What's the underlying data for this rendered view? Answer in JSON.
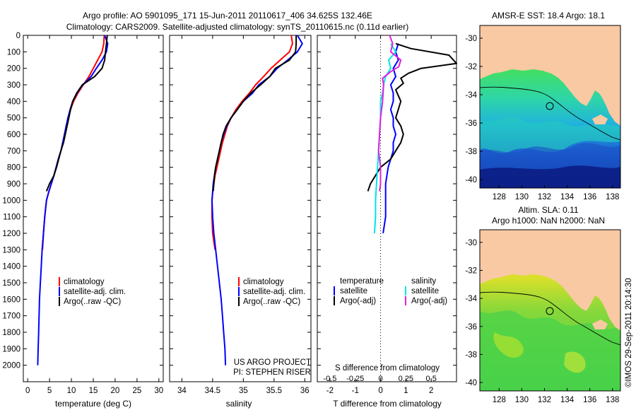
{
  "header": {
    "line1": "Argo profile: AO 5901095_171 15-Jun-2011 20110617_406 34.625S 132.46E",
    "line2": "Climatology: CARS2009. Satellite-adjusted climatology: synTS_20110615.nc (0.11d earlier)"
  },
  "colors": {
    "climatology": "#ff0000",
    "satellite": "#0000ff",
    "argo": "#000000",
    "salinity_sat": "#00e5e5",
    "salinity_argo": "#e020e0",
    "land": "#f9c9a3"
  },
  "credit": "©IMOS 29-Sep-2011 20:14:30",
  "chart_data": [
    {
      "type": "line",
      "xlabel": "temperature (deg C)",
      "ylabel": "",
      "xlim": [
        -1,
        31
      ],
      "ylim": [
        2100,
        0
      ],
      "xticks": [
        0,
        5,
        10,
        15,
        20,
        25,
        30
      ],
      "yticks": [
        0,
        100,
        200,
        300,
        400,
        500,
        600,
        700,
        800,
        900,
        1000,
        1100,
        1200,
        1300,
        1400,
        1500,
        1600,
        1700,
        1800,
        1900,
        2000
      ],
      "legend": [
        "climatology",
        "satellite-adj. clim.",
        "Argo(..raw -QC)"
      ],
      "series": [
        {
          "name": "climatology",
          "color": "#ff0000",
          "points": [
            [
              17.5,
              0
            ],
            [
              17.4,
              50
            ],
            [
              17.0,
              100
            ],
            [
              16.0,
              150
            ],
            [
              15.0,
              200
            ],
            [
              14.0,
              250
            ],
            [
              12.7,
              300
            ],
            [
              11.5,
              350
            ],
            [
              10.5,
              400
            ],
            [
              9.8,
              450
            ],
            [
              9.3,
              500
            ],
            [
              8.9,
              550
            ],
            [
              8.5,
              600
            ],
            [
              8.1,
              650
            ],
            [
              7.6,
              700
            ],
            [
              7.0,
              750
            ],
            [
              6.5,
              800
            ],
            [
              6.0,
              850
            ],
            [
              5.4,
              900
            ],
            [
              4.8,
              950
            ],
            [
              4.3,
              1000
            ],
            [
              3.9,
              1100
            ],
            [
              3.6,
              1200
            ],
            [
              3.4,
              1300
            ]
          ]
        },
        {
          "name": "satellite-adj. clim.",
          "color": "#0000ff",
          "points": [
            [
              17.6,
              0
            ],
            [
              18.3,
              50
            ],
            [
              18.0,
              100
            ],
            [
              17.0,
              150
            ],
            [
              15.7,
              200
            ],
            [
              14.5,
              250
            ],
            [
              12.6,
              300
            ],
            [
              11.3,
              350
            ],
            [
              10.3,
              400
            ],
            [
              9.7,
              450
            ],
            [
              9.2,
              500
            ],
            [
              8.8,
              550
            ],
            [
              8.4,
              600
            ],
            [
              8.0,
              650
            ],
            [
              7.6,
              700
            ],
            [
              7.0,
              750
            ],
            [
              6.5,
              800
            ],
            [
              6.0,
              850
            ],
            [
              5.4,
              900
            ],
            [
              4.8,
              950
            ],
            [
              4.3,
              1000
            ],
            [
              3.9,
              1100
            ],
            [
              3.6,
              1200
            ],
            [
              3.3,
              1300
            ],
            [
              3.1,
              1400
            ],
            [
              2.9,
              1500
            ],
            [
              2.7,
              1600
            ],
            [
              2.6,
              1700
            ],
            [
              2.5,
              1800
            ],
            [
              2.4,
              1900
            ],
            [
              2.3,
              2000
            ]
          ]
        },
        {
          "name": "Argo(..raw -QC)",
          "color": "#000000",
          "points": [
            [
              18.2,
              0
            ],
            [
              18.0,
              50
            ],
            [
              17.8,
              100
            ],
            [
              17.6,
              150
            ],
            [
              17.0,
              200
            ],
            [
              15.3,
              250
            ],
            [
              12.5,
              300
            ],
            [
              11.2,
              350
            ],
            [
              10.3,
              400
            ],
            [
              9.8,
              450
            ],
            [
              9.4,
              500
            ],
            [
              9.0,
              550
            ],
            [
              8.6,
              600
            ],
            [
              8.2,
              650
            ],
            [
              7.6,
              700
            ],
            [
              7.1,
              750
            ],
            [
              6.6,
              800
            ],
            [
              6.0,
              850
            ],
            [
              5.0,
              900
            ],
            [
              4.3,
              945
            ]
          ]
        }
      ]
    },
    {
      "type": "line",
      "xlabel": "salinity",
      "ylabel": "",
      "xlim": [
        33.8,
        36.1
      ],
      "ylim": [
        2100,
        0
      ],
      "xticks": [
        34,
        34.5,
        35,
        35.5,
        36
      ],
      "legend": [
        "climatology",
        "satellite-adj. clim.",
        "Argo(..raw -QC)"
      ],
      "annotation": [
        "US ARGO PROJECT",
        "PI: STEPHEN RISER"
      ],
      "series": [
        {
          "name": "climatology",
          "color": "#ff0000",
          "points": [
            [
              35.78,
              0
            ],
            [
              35.8,
              50
            ],
            [
              35.75,
              100
            ],
            [
              35.6,
              150
            ],
            [
              35.45,
              200
            ],
            [
              35.33,
              250
            ],
            [
              35.2,
              300
            ],
            [
              35.1,
              350
            ],
            [
              34.98,
              400
            ],
            [
              34.88,
              450
            ],
            [
              34.8,
              500
            ],
            [
              34.74,
              550
            ],
            [
              34.7,
              600
            ],
            [
              34.66,
              650
            ],
            [
              34.63,
              700
            ],
            [
              34.6,
              750
            ],
            [
              34.57,
              800
            ],
            [
              34.54,
              850
            ],
            [
              34.52,
              900
            ],
            [
              34.5,
              950
            ],
            [
              34.49,
              1000
            ],
            [
              34.49,
              1100
            ],
            [
              34.5,
              1200
            ],
            [
              34.54,
              1300
            ]
          ]
        },
        {
          "name": "satellite-adj. clim.",
          "color": "#0000ff",
          "points": [
            [
              35.88,
              0
            ],
            [
              35.96,
              50
            ],
            [
              35.88,
              100
            ],
            [
              35.72,
              150
            ],
            [
              35.55,
              200
            ],
            [
              35.43,
              250
            ],
            [
              35.25,
              300
            ],
            [
              35.15,
              350
            ],
            [
              35.0,
              400
            ],
            [
              34.9,
              450
            ],
            [
              34.8,
              500
            ],
            [
              34.73,
              550
            ],
            [
              34.68,
              600
            ],
            [
              34.64,
              650
            ],
            [
              34.61,
              700
            ],
            [
              34.58,
              750
            ],
            [
              34.55,
              800
            ],
            [
              34.53,
              850
            ],
            [
              34.51,
              900
            ],
            [
              34.5,
              950
            ],
            [
              34.49,
              1000
            ],
            [
              34.5,
              1100
            ],
            [
              34.52,
              1200
            ],
            [
              34.55,
              1300
            ],
            [
              34.58,
              1400
            ],
            [
              34.61,
              1500
            ],
            [
              34.64,
              1600
            ],
            [
              34.66,
              1700
            ],
            [
              34.68,
              1800
            ],
            [
              34.7,
              1900
            ],
            [
              34.71,
              2000
            ]
          ]
        },
        {
          "name": "Argo(..raw -QC)",
          "color": "#000000",
          "points": [
            [
              35.86,
              0
            ],
            [
              35.86,
              50
            ],
            [
              35.85,
              100
            ],
            [
              35.75,
              150
            ],
            [
              35.52,
              200
            ],
            [
              35.43,
              250
            ],
            [
              35.28,
              300
            ],
            [
              35.12,
              350
            ],
            [
              35.0,
              400
            ],
            [
              34.9,
              450
            ],
            [
              34.8,
              500
            ],
            [
              34.72,
              550
            ],
            [
              34.67,
              600
            ],
            [
              34.64,
              650
            ],
            [
              34.61,
              700
            ],
            [
              34.58,
              750
            ],
            [
              34.55,
              800
            ],
            [
              34.53,
              850
            ],
            [
              34.52,
              900
            ],
            [
              34.51,
              945
            ]
          ]
        }
      ]
    },
    {
      "type": "line",
      "xlabel": "T difference from climatology",
      "x2label": "S difference from climatology",
      "xlim": [
        -2.5,
        3.0
      ],
      "x2lim": [
        -0.625,
        0.75
      ],
      "ylim": [
        2100,
        0
      ],
      "xticks": [
        -2,
        -1,
        0,
        1,
        2
      ],
      "x2ticks": [
        -0.5,
        -0.25,
        0,
        0.25,
        0.5
      ],
      "legend_groups": [
        {
          "title": "temperature",
          "items": [
            "satellite",
            "Argo(-adj)"
          ]
        },
        {
          "title": "salinity",
          "items": [
            "satellite",
            "Argo(-adj)"
          ]
        }
      ],
      "series": [
        {
          "name": "temperature satellite",
          "color": "#0000ff",
          "points": [
            [
              0.7,
              50
            ],
            [
              0.6,
              100
            ],
            [
              0.7,
              150
            ],
            [
              0.5,
              200
            ],
            [
              0.6,
              250
            ],
            [
              0.4,
              300
            ],
            [
              0.5,
              350
            ],
            [
              0.5,
              400
            ],
            [
              0.4,
              450
            ],
            [
              0.5,
              500
            ],
            [
              0.5,
              550
            ],
            [
              0.6,
              600
            ],
            [
              0.5,
              650
            ],
            [
              0.5,
              700
            ],
            [
              0.4,
              750
            ],
            [
              0.3,
              800
            ],
            [
              0.2,
              900
            ],
            [
              0.2,
              1000
            ],
            [
              0.2,
              1100
            ],
            [
              0.1,
              1200
            ]
          ]
        },
        {
          "name": "temperature Argo(-adj)",
          "color": "#000000",
          "points": [
            [
              0.6,
              50
            ],
            [
              1.2,
              80
            ],
            [
              2.7,
              120
            ],
            [
              3.0,
              170
            ],
            [
              1.6,
              200
            ],
            [
              1.1,
              230
            ],
            [
              0.8,
              260
            ],
            [
              0.9,
              290
            ],
            [
              0.6,
              330
            ],
            [
              0.8,
              400
            ],
            [
              0.7,
              450
            ],
            [
              0.6,
              500
            ],
            [
              0.8,
              550
            ],
            [
              0.9,
              600
            ],
            [
              0.8,
              650
            ],
            [
              0.6,
              700
            ],
            [
              0.4,
              750
            ],
            [
              0.0,
              800
            ],
            [
              -0.4,
              900
            ],
            [
              -0.5,
              945
            ]
          ]
        },
        {
          "name": "salinity satellite",
          "color": "#00e5e5",
          "points": [
            [
              0.1,
              50
            ],
            [
              0.15,
              100
            ],
            [
              0.08,
              150
            ],
            [
              0.1,
              200
            ],
            [
              0.05,
              250
            ],
            [
              0.03,
              300
            ],
            [
              0.02,
              350
            ],
            [
              0.0,
              400
            ],
            [
              0.0,
              500
            ],
            [
              -0.01,
              600
            ],
            [
              -0.02,
              700
            ],
            [
              -0.03,
              800
            ],
            [
              -0.04,
              900
            ],
            [
              -0.05,
              1000
            ],
            [
              -0.05,
              1100
            ],
            [
              -0.06,
              1200
            ]
          ]
        },
        {
          "name": "salinity Argo(-adj)",
          "color": "#e020e0",
          "points": [
            [
              0.09,
              0
            ],
            [
              0.12,
              50
            ],
            [
              0.1,
              100
            ],
            [
              0.2,
              150
            ],
            [
              0.18,
              190
            ],
            [
              0.1,
              220
            ],
            [
              0.02,
              260
            ],
            [
              0.03,
              300
            ],
            [
              0.02,
              400
            ],
            [
              0.0,
              500
            ],
            [
              -0.01,
              600
            ],
            [
              -0.02,
              700
            ],
            [
              0.0,
              800
            ],
            [
              0.0,
              900
            ],
            [
              -0.01,
              945
            ]
          ]
        }
      ]
    },
    {
      "type": "heatmap",
      "title": "AMSR-E SST: 18.4 Argo: 18.1",
      "xticks": [
        128,
        130,
        132,
        134,
        136,
        138
      ],
      "yticks": [
        -30,
        -32,
        -34,
        -36,
        -38,
        -40
      ],
      "xlim": [
        126.3,
        138.7
      ],
      "ylim": [
        -40.6,
        -29.1
      ],
      "marker": {
        "lon": 132.46,
        "lat": -34.625
      }
    },
    {
      "type": "heatmap",
      "title": "Altim. SLA: 0.11",
      "subtitle": "Argo h1000: NaN h2000: NaN",
      "xticks": [
        128,
        130,
        132,
        134,
        136,
        138
      ],
      "yticks": [
        -30,
        -32,
        -34,
        -36,
        -38,
        -40
      ],
      "xlim": [
        126.3,
        138.7
      ],
      "ylim": [
        -40.6,
        -29.1
      ],
      "marker": {
        "lon": 132.46,
        "lat": -34.625
      }
    }
  ]
}
